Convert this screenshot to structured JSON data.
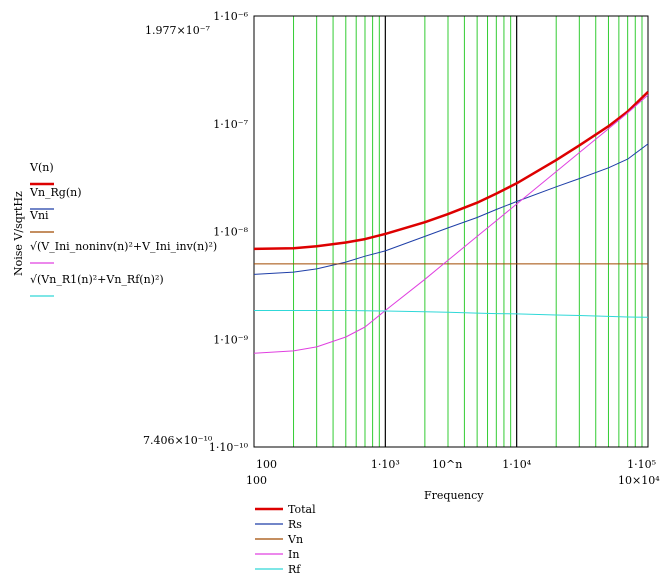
{
  "chart_data": {
    "type": "line",
    "x_scale": "log",
    "y_scale": "log",
    "xlabel": "Frequency",
    "ylabel": "Noise V/sqrtHz",
    "xlim": [
      100,
      100000
    ],
    "ylim": [
      1e-10,
      1e-06
    ],
    "x_axis_top_center": "10^n",
    "x_tick_labels": [
      "100",
      "1·10³",
      "1·10⁴",
      "1·10⁵"
    ],
    "y_tick_labels": [
      "1·10⁻¹⁰",
      "1·10⁻⁹",
      "1·10⁻⁸",
      "1·10⁻⁷",
      "1·10⁻⁶"
    ],
    "data_range_labels": {
      "y_max": "1.977×10⁻⁷",
      "y_min": "7.406×10⁻¹⁰",
      "x_min": "100",
      "x_max": "10×10⁴"
    },
    "grid": "minor-x",
    "legend_left": [
      {
        "label": "V(n)",
        "color": "#dd0000"
      },
      {
        "label": "Vn_Rg(n)",
        "color": "#1f3fa8"
      },
      {
        "label": "Vni",
        "color": "#a04a00"
      },
      {
        "label": "√(V_Ini_noninv(n)²+V_Ini_inv(n)²)",
        "color": "#e040e0"
      },
      {
        "label": "√(Vn_R1(n)²+Vn_Rf(n)²)",
        "color": "#30d8d8"
      }
    ],
    "legend_bottom": [
      {
        "label": "Total",
        "color": "#dd0000"
      },
      {
        "label": "Rs",
        "color": "#1f3fa8"
      },
      {
        "label": "Vn",
        "color": "#a04a00"
      },
      {
        "label": "In",
        "color": "#e040e0"
      },
      {
        "label": "Rf",
        "color": "#30d8d8"
      }
    ],
    "x": [
      100,
      200,
      300,
      500,
      700,
      1000,
      2000,
      3000,
      5000,
      7000,
      10000,
      20000,
      30000,
      50000,
      70000,
      100000
    ],
    "series": [
      {
        "name": "Total",
        "color": "#dd0000",
        "width": 2.5,
        "values": [
          6.9e-09,
          7e-09,
          7.3e-09,
          7.9e-09,
          8.5e-09,
          9.5e-09,
          1.22e-08,
          1.45e-08,
          1.85e-08,
          2.25e-08,
          2.8e-08,
          4.6e-08,
          6.3e-08,
          9.5e-08,
          1.3e-07,
          1.977e-07
        ]
      },
      {
        "name": "Rs",
        "color": "#1f3fa8",
        "width": 1,
        "values": [
          4e-09,
          4.2e-09,
          4.5e-09,
          5.2e-09,
          5.9e-09,
          6.6e-09,
          9e-09,
          1.08e-08,
          1.35e-08,
          1.6e-08,
          1.9e-08,
          2.6e-08,
          3.1e-08,
          3.9e-08,
          4.7e-08,
          6.5e-08
        ]
      },
      {
        "name": "Vn",
        "color": "#a04a00",
        "width": 1,
        "values": [
          5e-09,
          5e-09,
          5e-09,
          5e-09,
          5e-09,
          5e-09,
          5e-09,
          5e-09,
          5e-09,
          5e-09,
          5e-09,
          5e-09,
          5e-09,
          5e-09,
          5e-09,
          5e-09
        ]
      },
      {
        "name": "In",
        "color": "#e040e0",
        "width": 1,
        "values": [
          7.406e-10,
          7.8e-10,
          8.5e-10,
          1.05e-09,
          1.3e-09,
          1.85e-09,
          3.6e-09,
          5.4e-09,
          9e-09,
          1.26e-08,
          1.8e-08,
          3.6e-08,
          5.4e-08,
          9e-08,
          1.26e-07,
          1.85e-07
        ]
      },
      {
        "name": "Rf",
        "color": "#30d8d8",
        "width": 1,
        "values": [
          1.85e-09,
          1.85e-09,
          1.85e-09,
          1.85e-09,
          1.84e-09,
          1.83e-09,
          1.8e-09,
          1.78e-09,
          1.75e-09,
          1.73e-09,
          1.72e-09,
          1.68e-09,
          1.66e-09,
          1.63e-09,
          1.61e-09,
          1.6e-09
        ]
      }
    ]
  }
}
